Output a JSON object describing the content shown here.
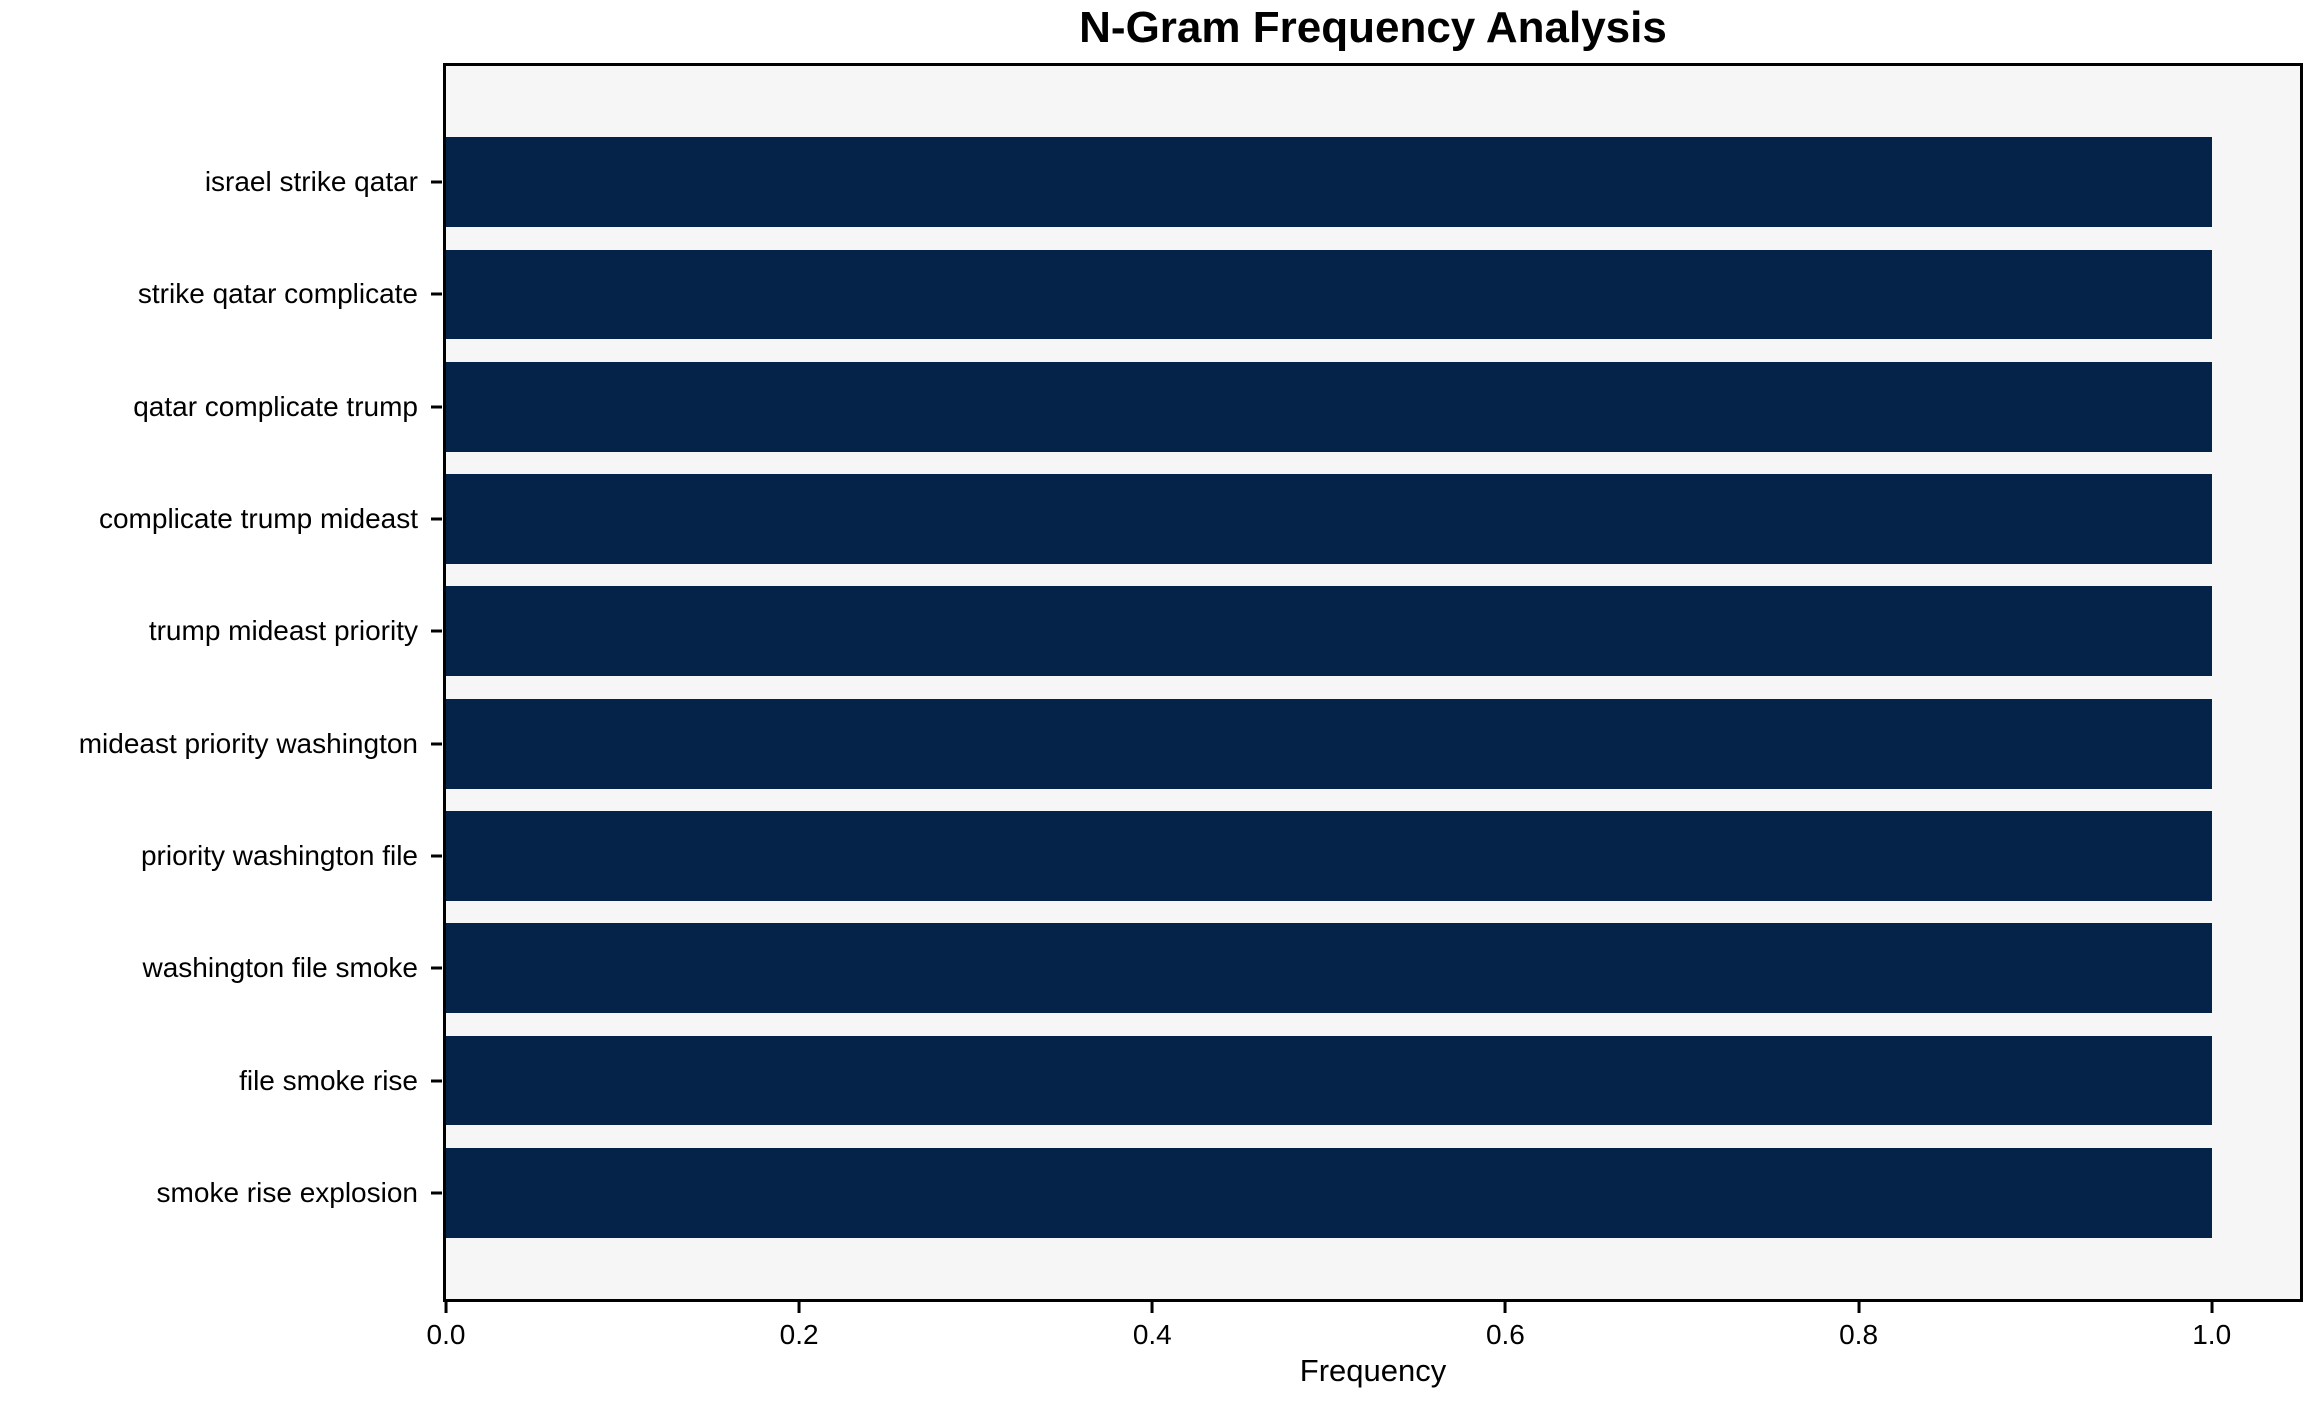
{
  "chart_data": {
    "type": "bar",
    "orientation": "horizontal",
    "title": "N-Gram Frequency Analysis",
    "xlabel": "Frequency",
    "ylabel": "",
    "categories": [
      "israel strike qatar",
      "strike qatar complicate",
      "qatar complicate trump",
      "complicate trump mideast",
      "trump mideast priority",
      "mideast priority washington",
      "priority washington file",
      "washington file smoke",
      "file smoke rise",
      "smoke rise explosion"
    ],
    "values": [
      1.0,
      1.0,
      1.0,
      1.0,
      1.0,
      1.0,
      1.0,
      1.0,
      1.0,
      1.0
    ],
    "xlim": [
      0,
      1.05
    ],
    "xtick_labels": [
      "0.0",
      "0.2",
      "0.4",
      "0.6",
      "0.8",
      "1.0"
    ],
    "xtick_values": [
      0.0,
      0.2,
      0.4,
      0.6,
      0.8,
      1.0
    ],
    "grid": false,
    "legend": null,
    "colors": {
      "bar": "#052248",
      "plot_bg": "#f6f6f7",
      "figure_bg": "#ffffff",
      "text": "#000000",
      "spine": "#000000"
    }
  }
}
